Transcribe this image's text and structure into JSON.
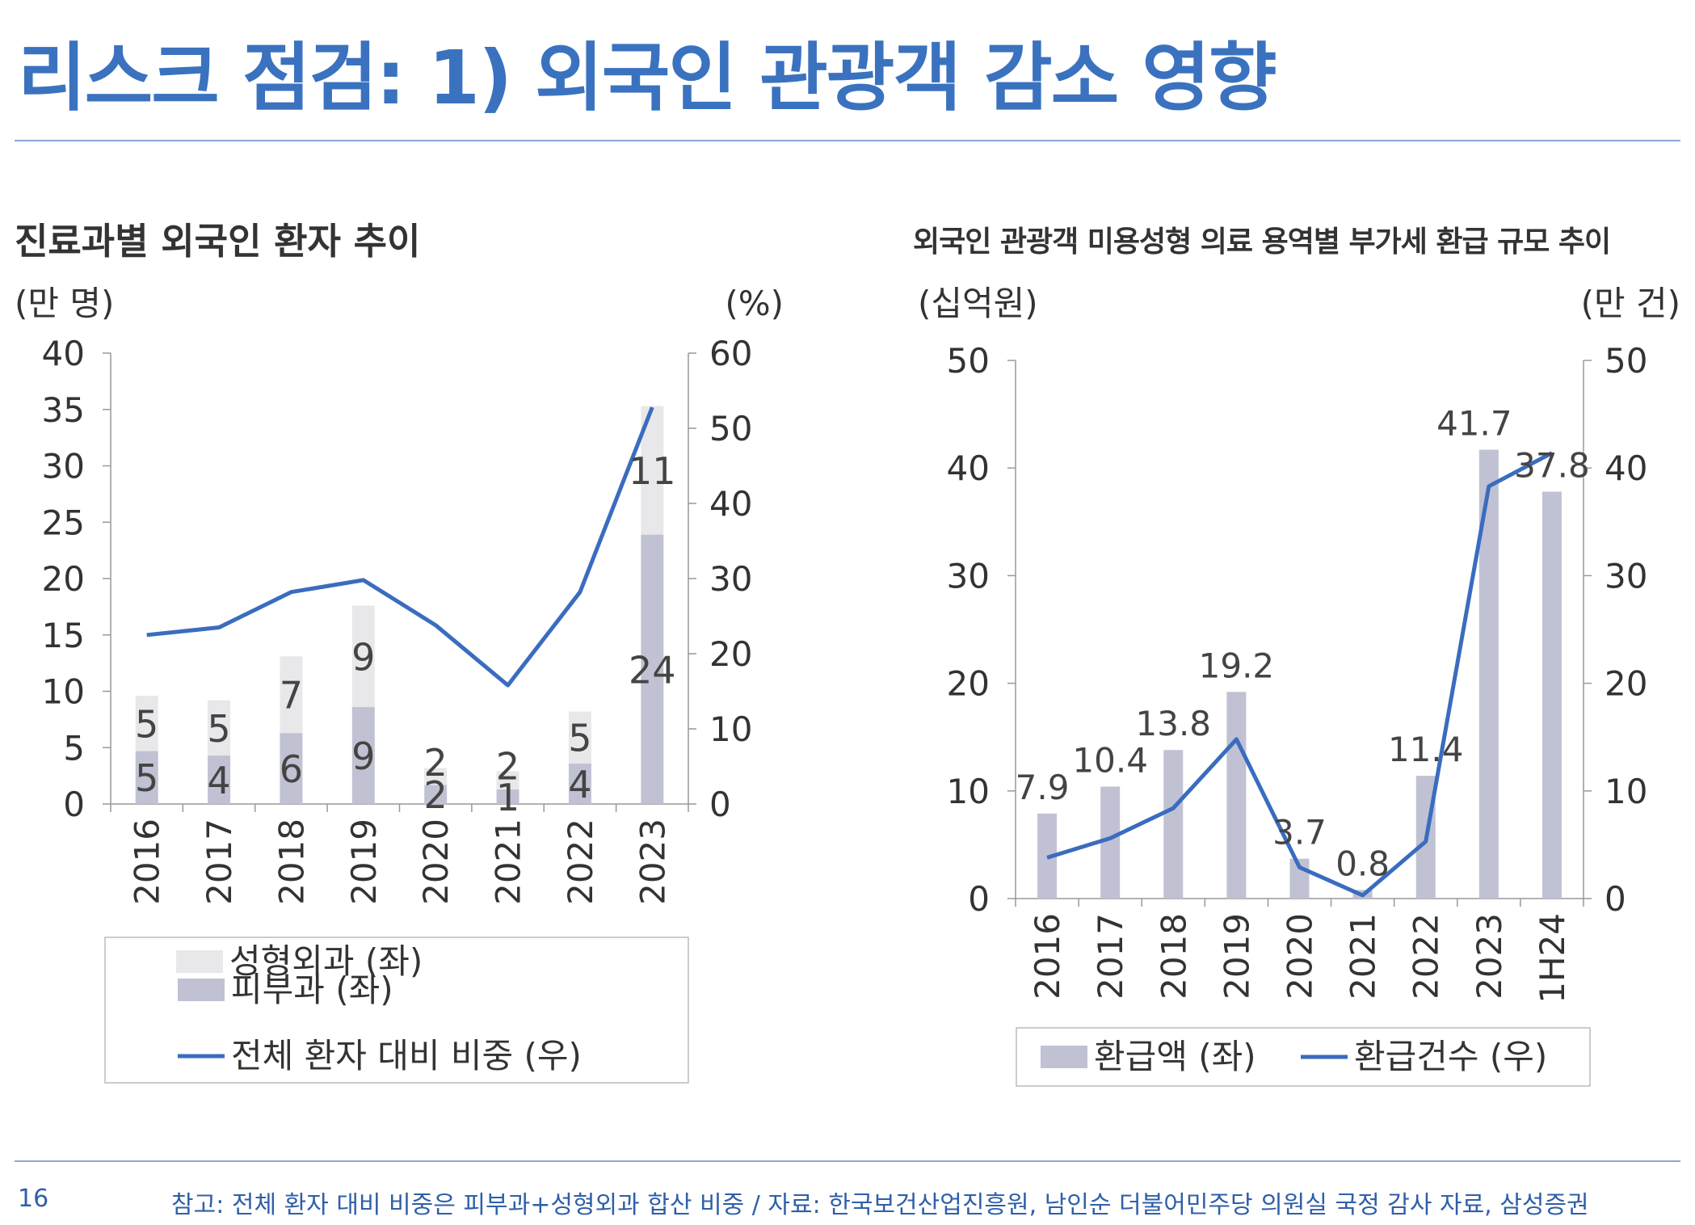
{
  "page": {
    "title": "리스크 점검: 1) 외국인 관광객 감소 영향",
    "page_number": "16",
    "footer_note": "참고: 전체 환자 대비 비중은 피부과+성형외과 합산 비중 / 자료: 한국보건산업진흥원, 남인순 더불어민주당 의원실 국정 감사 자료, 삼성증권"
  },
  "colors": {
    "accent": "#3a72bf",
    "bar_dark": "#c0c2d3",
    "bar_light": "#e8e8ea",
    "line": "#3a6cbf"
  },
  "chart_data": [
    {
      "type": "bar",
      "stacked": true,
      "title": "진료과별 외국인 환자 추이",
      "ylabel_left": "(만 명)",
      "ylabel_right": "(%)",
      "ylim_left": [
        0,
        40
      ],
      "ylim_right": [
        0,
        60
      ],
      "yticks_left": [
        "0",
        "5",
        "10",
        "15",
        "20",
        "25",
        "30",
        "35",
        "40"
      ],
      "yticks_right": [
        "0",
        "10",
        "20",
        "30",
        "40",
        "50",
        "60"
      ],
      "categories": [
        "2016",
        "2017",
        "2018",
        "2019",
        "2020",
        "2021",
        "2022",
        "2023"
      ],
      "series": [
        {
          "name": "피부과 (좌)",
          "kind": "bar",
          "axis": "left",
          "values": [
            4.7,
            4.3,
            6.3,
            8.6,
            1.7,
            1.3,
            3.6,
            23.9
          ],
          "labels": [
            "5",
            "4",
            "6",
            "9",
            "2",
            "1",
            "4",
            "24"
          ]
        },
        {
          "name": "성형외과 (좌)",
          "kind": "bar",
          "axis": "left",
          "values": [
            4.9,
            4.9,
            6.8,
            9.0,
            1.5,
            1.6,
            4.6,
            11.4
          ],
          "labels": [
            "5",
            "5",
            "7",
            "9",
            "2",
            "2",
            "5",
            "11"
          ]
        },
        {
          "name": "전체 환자 대비 비중 (우)",
          "kind": "line",
          "axis": "right",
          "values": [
            22.5,
            23.5,
            28.2,
            29.8,
            23.8,
            15.8,
            28.2,
            52.8
          ]
        }
      ],
      "legend": [
        "성형외과 (좌)",
        "피부과 (좌)",
        "전체 환자 대비 비중 (우)"
      ]
    },
    {
      "type": "bar",
      "title": "외국인 관광객 미용성형 의료 용역별 부가세 환급 규모 추이",
      "ylabel_left": "(십억원)",
      "ylabel_right": "(만 건)",
      "ylim_left": [
        0,
        50
      ],
      "ylim_right": [
        0,
        50
      ],
      "yticks_left": [
        "0",
        "10",
        "20",
        "30",
        "40",
        "50"
      ],
      "yticks_right": [
        "0",
        "10",
        "20",
        "30",
        "40",
        "50"
      ],
      "categories": [
        "2016",
        "2017",
        "2018",
        "2019",
        "2020",
        "2021",
        "2022",
        "2023",
        "1H24"
      ],
      "series": [
        {
          "name": "환급액 (좌)",
          "kind": "bar",
          "axis": "left",
          "values": [
            7.9,
            10.4,
            13.8,
            19.2,
            3.7,
            0.8,
            11.4,
            41.7,
            37.8
          ],
          "labels": [
            "7.9",
            "10.4",
            "13.8",
            "19.2",
            "3.7",
            "0.8",
            "11.4",
            "41.7",
            "37.8"
          ]
        },
        {
          "name": "환급건수 (우)",
          "kind": "line",
          "axis": "right",
          "values": [
            3.8,
            5.6,
            8.4,
            14.8,
            2.9,
            0.3,
            5.3,
            38.3,
            41.4
          ]
        }
      ],
      "legend": [
        "환급액 (좌)",
        "환급건수 (우)"
      ]
    }
  ]
}
